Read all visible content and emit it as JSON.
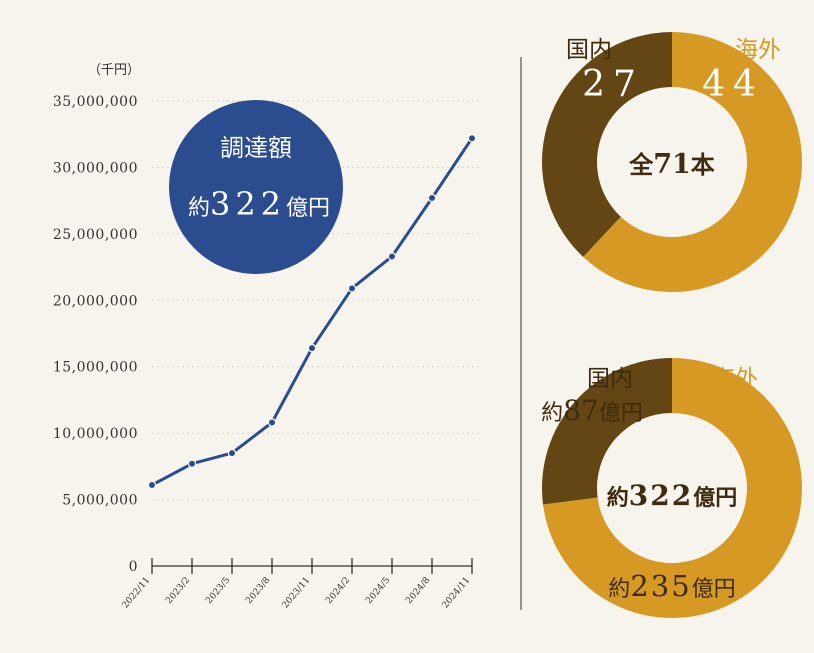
{
  "colors": {
    "background": "#f7f4ee",
    "line": "#2b4d8f",
    "badge": "#2b4d8f",
    "overseas": "#d69a24",
    "domestic": "#634614",
    "text_dark": "#3e2b10",
    "axis": "#333333",
    "grid": "#d8d1c4"
  },
  "badge": {
    "title": "調達額",
    "prefix": "約",
    "value": "322",
    "suffix": "億円"
  },
  "chart_data": [
    {
      "type": "line",
      "unit_label": "（千円）",
      "x": [
        "2022/11",
        "2023/2",
        "2023/5",
        "2023/8",
        "2023/11",
        "2024/2",
        "2024/5",
        "2024/8",
        "2024/11"
      ],
      "series": [
        {
          "values": [
            6100000,
            7700000,
            8500000,
            10800000,
            16400000,
            20900000,
            23300000,
            27700000,
            32200000
          ]
        }
      ],
      "ylim": [
        0,
        35000000
      ],
      "yticks": [
        0,
        5000000,
        10000000,
        15000000,
        20000000,
        25000000,
        30000000,
        35000000
      ],
      "ytick_labels": [
        "0",
        "5,000,000",
        "10,000,000",
        "15,000,000",
        "20,000,000",
        "25,000,000",
        "30,000,000",
        "35,000,000"
      ],
      "grid": true
    },
    {
      "type": "pie",
      "donut": true,
      "center": {
        "prefix": "全",
        "value": "71",
        "suffix": "本"
      },
      "slices": [
        {
          "label": "海外",
          "value": 44,
          "value_text": "44",
          "color": "#d69a24"
        },
        {
          "label": "国内",
          "value": 27,
          "value_text": "27",
          "color": "#634614"
        }
      ]
    },
    {
      "type": "pie",
      "donut": true,
      "center": {
        "prefix": "約",
        "value": "322",
        "suffix": "億円"
      },
      "slices": [
        {
          "label": "海外",
          "value": 235,
          "prefix": "約",
          "value_text": "235",
          "suffix": "億円",
          "color": "#d69a24"
        },
        {
          "label": "国内",
          "value": 87,
          "prefix": "約",
          "value_text": "87",
          "suffix": "億円",
          "color": "#634614"
        }
      ]
    }
  ]
}
